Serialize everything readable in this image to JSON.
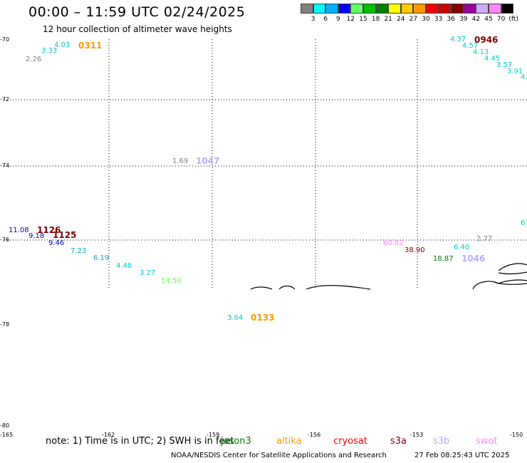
{
  "header": {
    "title": "00:00 – 11:59 UTC 02/24/2025",
    "subtitle": "12 hour collection of altimeter wave heights"
  },
  "colorbar": {
    "colors": [
      "#808080",
      "#00ffff",
      "#00b0ff",
      "#0000ff",
      "#66ff66",
      "#00c000",
      "#008000",
      "#ffff00",
      "#ffcc00",
      "#ff9900",
      "#ff0000",
      "#cc0000",
      "#800000",
      "#990099",
      "#ccaaff",
      "#ff88ff",
      "#000000"
    ],
    "ticks": [
      "3",
      "6",
      "9",
      "12",
      "15",
      "18",
      "21",
      "24",
      "27",
      "30",
      "33",
      "36",
      "39",
      "42",
      "45",
      "70",
      "(ft)"
    ]
  },
  "axes": {
    "lat_labels": [
      "-70",
      "-72",
      "-74",
      "-76",
      "-78",
      "-80"
    ],
    "lon_labels": [
      "-165",
      "-162",
      "-159",
      "-156",
      "-153",
      "-150"
    ]
  },
  "observations": [
    {
      "text": "2.26",
      "color": "#808080"
    },
    {
      "text": "3.33",
      "color": "#00cccc"
    },
    {
      "text": "4.03",
      "color": "#00cccc"
    },
    {
      "text": "0311",
      "color": "#ff9900",
      "type": "time"
    },
    {
      "text": "4.37",
      "color": "#00cccc"
    },
    {
      "text": "0946",
      "color": "#800000",
      "type": "time"
    },
    {
      "text": "4.57",
      "color": "#00cccc"
    },
    {
      "text": "4.13",
      "color": "#00cccc"
    },
    {
      "text": "4.45",
      "color": "#00cccc"
    },
    {
      "text": "3.57",
      "color": "#00cccc"
    },
    {
      "text": "3.91",
      "color": "#00cccc"
    },
    {
      "text": "4.",
      "color": "#00cccc"
    },
    {
      "text": "1.69",
      "color": "#808080"
    },
    {
      "text": "1047",
      "color": "#bbaaff",
      "type": "time"
    },
    {
      "text": "11.08",
      "color": "#0000aa"
    },
    {
      "text": "1126",
      "color": "#800000",
      "type": "time"
    },
    {
      "text": "9.18",
      "color": "#0000aa"
    },
    {
      "text": "1125",
      "color": "#800000",
      "type": "time"
    },
    {
      "text": "9.46",
      "color": "#0000aa"
    },
    {
      "text": "7.23",
      "color": "#00aacc"
    },
    {
      "text": "6.19",
      "color": "#00aacc"
    },
    {
      "text": "4.48",
      "color": "#00cccc"
    },
    {
      "text": "3.27",
      "color": "#00cccc"
    },
    {
      "text": "14.50",
      "color": "#66ff66"
    },
    {
      "text": "3.64",
      "color": "#00cccc"
    },
    {
      "text": "0133",
      "color": "#ff9900",
      "type": "time"
    },
    {
      "text": "60.82",
      "color": "#ff88ff"
    },
    {
      "text": "38.90",
      "color": "#800000"
    },
    {
      "text": "6.40",
      "color": "#00cccc"
    },
    {
      "text": "2.77",
      "color": "#808080"
    },
    {
      "text": "18.87",
      "color": "#008000"
    },
    {
      "text": "1046",
      "color": "#bbaaff",
      "type": "time"
    },
    {
      "text": "6.",
      "color": "#00cccc"
    }
  ],
  "footer": {
    "note": "note: 1) Time is in UTC; 2) SWH is in feet",
    "legend": [
      {
        "text": "jason3",
        "color": "#008000"
      },
      {
        "text": "altika",
        "color": "#ff9900"
      },
      {
        "text": "cryosat",
        "color": "#ff0000"
      },
      {
        "text": "s3a",
        "color": "#800000"
      },
      {
        "text": "s3b",
        "color": "#bbaaff"
      },
      {
        "text": "swot",
        "color": "#ff88ff"
      }
    ],
    "credit": "NOAA/NESDIS Center for Satellite Applications and Research",
    "timestamp": "27 Feb 08:25:43 UTC 2025"
  }
}
